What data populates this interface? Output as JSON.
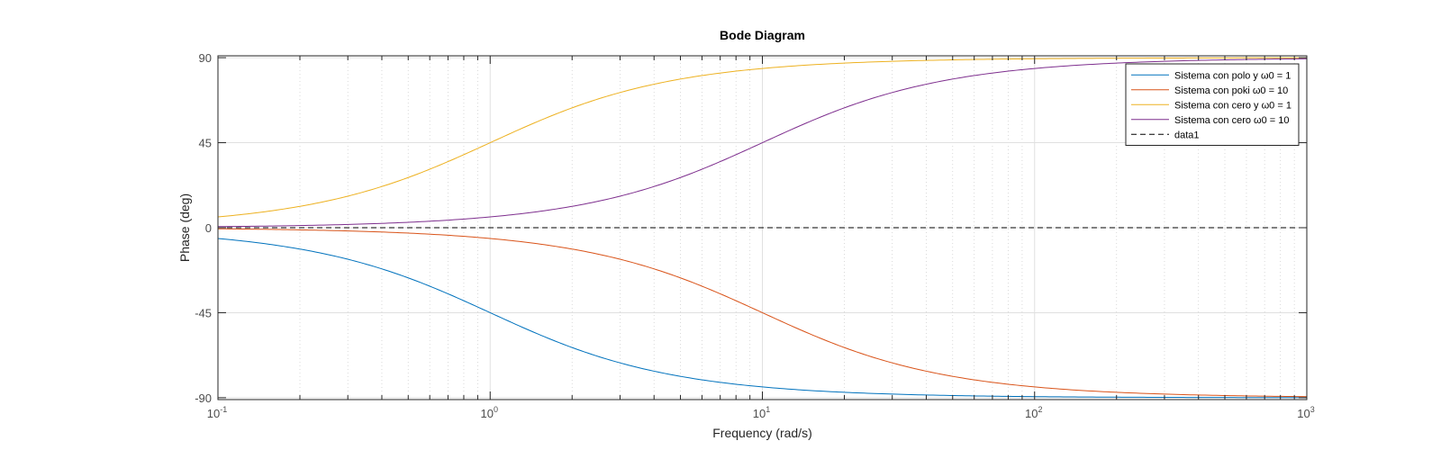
{
  "chart_data": {
    "type": "line",
    "title": "Bode Diagram",
    "xlabel": "Frequency  (rad/s)",
    "ylabel": "Phase (deg)",
    "xscale": "log",
    "xlim": [
      0.1,
      1000
    ],
    "ylim": [
      -91,
      91
    ],
    "xticks": [
      {
        "value": 0.1,
        "base": "10",
        "exp": "-1"
      },
      {
        "value": 1,
        "base": "10",
        "exp": "0"
      },
      {
        "value": 10,
        "base": "10",
        "exp": "1"
      },
      {
        "value": 100,
        "base": "10",
        "exp": "2"
      },
      {
        "value": 1000,
        "base": "10",
        "exp": "3"
      }
    ],
    "yticks": [
      {
        "value": 90,
        "label": "90"
      },
      {
        "value": 45,
        "label": "45"
      },
      {
        "value": 0,
        "label": "0"
      },
      {
        "value": -45,
        "label": "-45"
      },
      {
        "value": -90,
        "label": "-90"
      }
    ],
    "grid": true,
    "minor_grid": true,
    "legend_position": "top-right",
    "x": [
      0.1,
      0.2,
      0.5,
      1,
      2,
      5,
      10,
      20,
      50,
      100,
      200,
      500,
      1000
    ],
    "series": [
      {
        "name": "Sistema con polo y ω0 = 1",
        "color": "#0072BD",
        "dash": "solid",
        "values": [
          -5.7,
          -11.3,
          -26.6,
          -45,
          -63.4,
          -78.7,
          -84.3,
          -87.1,
          -88.9,
          -89.4,
          -89.7,
          -89.9,
          -89.9
        ]
      },
      {
        "name": "Sistema con poki ω0 = 10",
        "color": "#D95319",
        "dash": "solid",
        "values": [
          -0.6,
          -1.1,
          -2.9,
          -5.7,
          -11.3,
          -26.6,
          -45,
          -63.4,
          -78.7,
          -84.3,
          -87.1,
          -88.9,
          -89.4
        ]
      },
      {
        "name": "Sistema con cero y ω0 = 1",
        "color": "#EDB120",
        "dash": "solid",
        "values": [
          5.7,
          11.3,
          26.6,
          45,
          63.4,
          78.7,
          84.3,
          87.1,
          88.9,
          89.4,
          89.7,
          89.9,
          89.9
        ]
      },
      {
        "name": "Sistema con cero ω0 = 10",
        "color": "#7E2F8E",
        "dash": "solid",
        "values": [
          0.6,
          1.1,
          2.9,
          5.7,
          11.3,
          26.6,
          45,
          63.4,
          78.7,
          84.3,
          87.1,
          88.9,
          89.4
        ]
      },
      {
        "name": "data1",
        "color": "#000000",
        "dash": "dashed",
        "values": [
          0,
          0,
          0,
          0,
          0,
          0,
          0,
          0,
          0,
          0,
          0,
          0,
          0
        ]
      }
    ]
  }
}
